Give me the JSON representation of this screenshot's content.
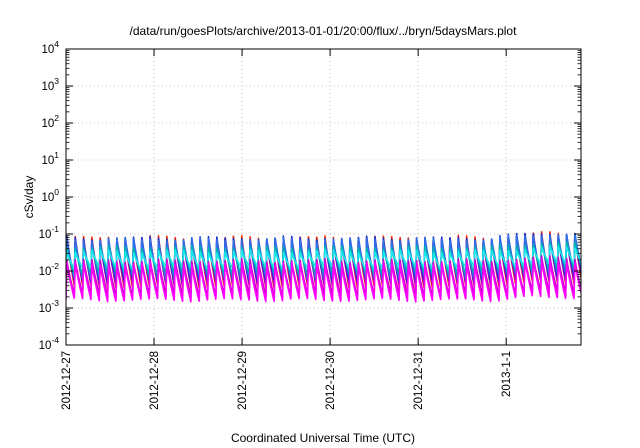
{
  "chart_data": {
    "type": "line",
    "title": "/data/run/goesPlots/archive/2013-01-01/20:00/flux/../bryn/5daysMars.plot",
    "xlabel": "Coordinated Universal Time (UTC)",
    "ylabel": "cSv/day",
    "y_scale": "log",
    "ylim": [
      0.0001,
      10000
    ],
    "xlim": [
      "2012-12-27",
      "2013-01-01T20:00"
    ],
    "x_range_days": [
      0,
      5.85
    ],
    "grid": true,
    "legend": "none",
    "y_ticks": [
      {
        "value": 0.0001,
        "base": "10",
        "exp": "-4"
      },
      {
        "value": 0.001,
        "base": "10",
        "exp": "-3"
      },
      {
        "value": 0.01,
        "base": "10",
        "exp": "-2"
      },
      {
        "value": 0.1,
        "base": "10",
        "exp": "-1"
      },
      {
        "value": 1,
        "base": "10",
        "exp": "0"
      },
      {
        "value": 10,
        "base": "10",
        "exp": "1"
      },
      {
        "value": 100,
        "base": "10",
        "exp": "2"
      },
      {
        "value": 1000,
        "base": "10",
        "exp": "3"
      },
      {
        "value": 10000,
        "base": "10",
        "exp": "4"
      }
    ],
    "x_ticks": [
      {
        "day": 0,
        "label": "2012-12-27"
      },
      {
        "day": 1,
        "label": "2012-12-28"
      },
      {
        "day": 2,
        "label": "2012-12-29"
      },
      {
        "day": 3,
        "label": "2012-12-30"
      },
      {
        "day": 4,
        "label": "2012-12-31"
      },
      {
        "day": 5,
        "label": "2013-1-1"
      }
    ],
    "pattern": {
      "cycle_days": 0.0946,
      "phase_days": 0.0,
      "rise_fraction": 0.1
    },
    "series": [
      {
        "color": "#ff2a00",
        "peak": 0.085,
        "trough": 0.0037,
        "boost": 1.3
      },
      {
        "color": "#9400d3",
        "peak": 0.07,
        "trough": 0.0045,
        "boost": 1.3
      },
      {
        "color": "#1e2fc8",
        "peak": 0.082,
        "trough": 0.0055,
        "boost": 1.35
      },
      {
        "color": "#2f6fe8",
        "peak": 0.075,
        "trough": 0.0065,
        "boost": 1.35
      },
      {
        "color": "#00b4b4",
        "peak": 0.045,
        "trough": 0.0085,
        "boost": 1.3
      },
      {
        "color": "#18e8e8",
        "peak": 0.035,
        "trough": 0.012,
        "boost": 1.25
      },
      {
        "color": "#cc00cc",
        "peak": 0.02,
        "trough": 0.0022,
        "boost": 1.2
      },
      {
        "color": "#ff00ff",
        "peak": 0.016,
        "trough": 0.0016,
        "boost": 1.2
      }
    ]
  }
}
